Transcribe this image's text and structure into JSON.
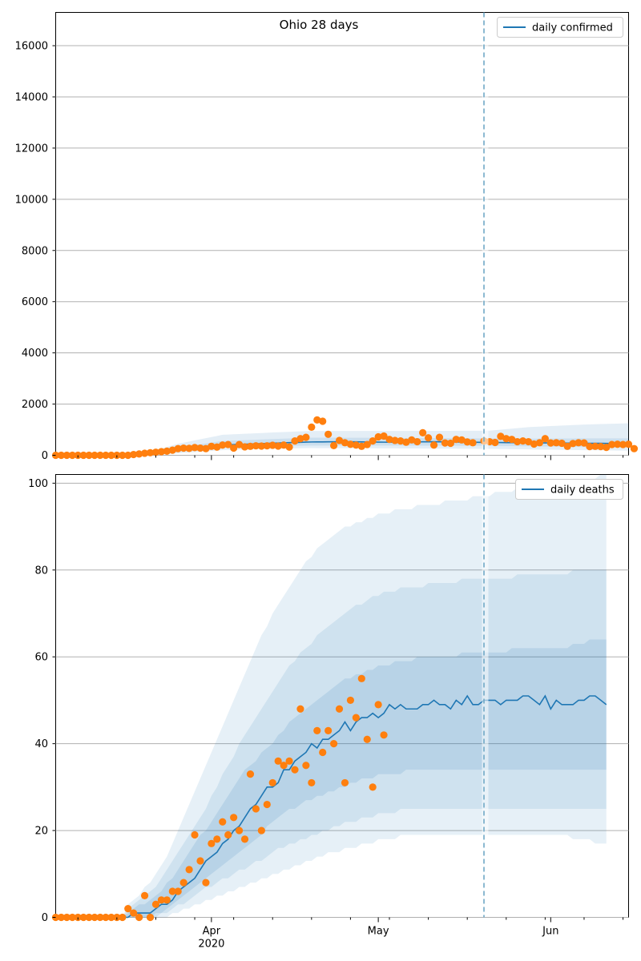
{
  "colors": {
    "line": "#1f77b4",
    "points": "#ff7f0e",
    "band": "#1f77b4",
    "vline": "#6fa8c6",
    "grid": "#b0b0b0"
  },
  "x_axis": {
    "date_range": [
      "2020-03-04",
      "2020-06-15"
    ],
    "forecast_start": "2020-05-20",
    "month_ticks": [
      {
        "date": "2020-04-01",
        "label": "Apr",
        "sublabel": "2020"
      },
      {
        "date": "2020-05-01",
        "label": "May",
        "sublabel": ""
      },
      {
        "date": "2020-06-01",
        "label": "Jun",
        "sublabel": ""
      }
    ],
    "minor_ticks": [
      "2020-03-08",
      "2020-03-15",
      "2020-03-22",
      "2020-03-29",
      "2020-04-05",
      "2020-04-12",
      "2020-04-19",
      "2020-04-26",
      "2020-05-03",
      "2020-05-10",
      "2020-05-17",
      "2020-05-24",
      "2020-05-31",
      "2020-06-07",
      "2020-06-14"
    ]
  },
  "chart_data": [
    {
      "type": "line",
      "title": "Ohio 28 days",
      "legend": "daily confirmed",
      "legend_position": "top-right",
      "grid": "horizontal",
      "ylim": [
        0,
        17300
      ],
      "yticks": [
        0,
        2000,
        4000,
        6000,
        8000,
        10000,
        12000,
        14000,
        16000
      ],
      "start": "2020-03-04",
      "median_knots": [
        [
          0,
          0
        ],
        [
          14,
          0
        ],
        [
          18,
          80
        ],
        [
          22,
          200
        ],
        [
          26,
          300
        ],
        [
          30,
          400
        ],
        [
          40,
          480
        ],
        [
          46,
          520
        ],
        [
          52,
          530
        ],
        [
          60,
          510
        ],
        [
          68,
          530
        ],
        [
          78,
          500
        ],
        [
          85,
          490
        ],
        [
          95,
          470
        ],
        [
          103,
          460
        ]
      ],
      "band_inner_knots": [
        [
          0,
          0,
          0
        ],
        [
          14,
          0,
          0
        ],
        [
          18,
          50,
          120
        ],
        [
          22,
          140,
          300
        ],
        [
          30,
          300,
          560
        ],
        [
          40,
          360,
          640
        ],
        [
          46,
          380,
          690
        ],
        [
          60,
          380,
          680
        ],
        [
          78,
          370,
          660
        ],
        [
          85,
          350,
          650
        ],
        [
          95,
          320,
          660
        ],
        [
          103,
          300,
          660
        ]
      ],
      "band_outer_knots": [
        [
          0,
          0,
          0
        ],
        [
          14,
          0,
          0
        ],
        [
          18,
          20,
          200
        ],
        [
          22,
          80,
          450
        ],
        [
          30,
          200,
          800
        ],
        [
          40,
          260,
          900
        ],
        [
          46,
          280,
          950
        ],
        [
          60,
          270,
          950
        ],
        [
          78,
          250,
          960
        ],
        [
          85,
          230,
          1100
        ],
        [
          95,
          200,
          1200
        ],
        [
          103,
          180,
          1250
        ]
      ],
      "observed": [
        0,
        0,
        0,
        0,
        0,
        0,
        0,
        0,
        0,
        0,
        0,
        0,
        0,
        0,
        30,
        50,
        80,
        100,
        120,
        140,
        160,
        200,
        260,
        280,
        270,
        300,
        280,
        260,
        350,
        320,
        400,
        420,
        280,
        420,
        330,
        350,
        370,
        360,
        370,
        390,
        360,
        400,
        320,
        560,
        650,
        700,
        1100,
        1380,
        1330,
        820,
        380,
        580,
        490,
        430,
        400,
        350,
        420,
        560,
        720,
        750,
        620,
        580,
        560,
        510,
        600,
        530,
        880,
        680,
        400,
        700,
        480,
        470,
        620,
        600,
        520,
        490
      ],
      "observed_late": [
        [
          77,
          560
        ],
        [
          78,
          530
        ],
        [
          79,
          500
        ],
        [
          80,
          740
        ],
        [
          81,
          650
        ],
        [
          82,
          620
        ],
        [
          83,
          530
        ],
        [
          84,
          560
        ],
        [
          85,
          530
        ],
        [
          86,
          440
        ],
        [
          87,
          490
        ],
        [
          88,
          650
        ],
        [
          89,
          480
        ],
        [
          90,
          490
        ],
        [
          91,
          470
        ],
        [
          92,
          350
        ],
        [
          93,
          460
        ],
        [
          94,
          490
        ],
        [
          95,
          480
        ],
        [
          96,
          340
        ],
        [
          97,
          350
        ],
        [
          98,
          340
        ],
        [
          99,
          310
        ],
        [
          100,
          420
        ],
        [
          101,
          430
        ],
        [
          102,
          420
        ],
        [
          103,
          430
        ],
        [
          104,
          260
        ]
      ]
    },
    {
      "type": "line",
      "title": "",
      "legend": "daily deaths",
      "legend_position": "top-right",
      "grid": "horizontal",
      "ylim": [
        0,
        102
      ],
      "yticks": [
        0,
        20,
        40,
        60,
        80,
        100
      ],
      "start": "2020-03-04",
      "median": [
        0,
        0,
        0,
        0,
        0,
        0,
        0,
        0,
        0,
        0,
        0,
        0,
        0,
        0,
        1,
        1,
        1,
        1,
        2,
        3,
        3,
        4,
        6,
        7,
        8,
        9,
        11,
        13,
        14,
        15,
        17,
        18,
        20,
        21,
        23,
        25,
        26,
        28,
        30,
        30,
        31,
        34,
        34,
        36,
        37,
        38,
        40,
        39,
        41,
        41,
        42,
        43,
        45,
        43,
        45,
        46,
        46,
        47,
        46,
        47,
        49,
        48,
        49,
        48,
        48,
        48,
        49,
        49,
        50,
        49,
        49,
        48,
        50,
        49,
        51,
        49,
        49,
        50,
        50,
        50,
        49,
        50,
        50,
        50,
        51,
        51,
        50,
        49,
        51,
        48,
        50,
        49,
        49,
        49,
        50,
        50,
        51,
        51,
        50,
        49
      ],
      "p25": [
        0,
        0,
        0,
        0,
        0,
        0,
        0,
        0,
        0,
        0,
        0,
        0,
        0,
        0,
        0,
        0,
        0,
        0,
        1,
        1,
        2,
        3,
        4,
        5,
        6,
        7,
        8,
        9,
        10,
        11,
        12,
        13,
        14,
        15,
        16,
        17,
        18,
        19,
        21,
        22,
        23,
        24,
        25,
        25,
        26,
        27,
        27,
        28,
        28,
        29,
        29,
        30,
        30,
        31,
        31,
        32,
        32,
        32,
        33,
        33,
        33,
        33,
        33,
        34,
        34,
        34,
        34,
        34,
        34,
        34,
        34,
        34,
        34,
        34,
        34,
        34,
        34,
        34,
        34,
        34,
        34,
        34,
        34,
        34,
        34,
        34,
        34,
        34,
        34,
        34,
        34,
        34,
        34,
        34,
        34,
        34,
        34,
        34,
        34,
        34
      ],
      "p75": [
        0,
        0,
        0,
        0,
        0,
        0,
        0,
        0,
        0,
        0,
        0,
        0,
        0,
        1,
        2,
        3,
        3,
        4,
        5,
        6,
        8,
        9,
        11,
        13,
        15,
        17,
        19,
        20,
        22,
        24,
        26,
        28,
        30,
        32,
        34,
        35,
        36,
        38,
        39,
        40,
        42,
        43,
        45,
        46,
        47,
        48,
        49,
        50,
        51,
        52,
        53,
        54,
        55,
        55,
        56,
        56,
        57,
        57,
        58,
        58,
        58,
        59,
        59,
        59,
        59,
        60,
        60,
        60,
        60,
        60,
        60,
        60,
        60,
        61,
        61,
        61,
        61,
        61,
        61,
        61,
        61,
        61,
        62,
        62,
        62,
        62,
        62,
        62,
        62,
        62,
        62,
        62,
        62,
        63,
        63,
        63,
        64,
        64,
        64,
        64
      ],
      "p10": [
        0,
        0,
        0,
        0,
        0,
        0,
        0,
        0,
        0,
        0,
        0,
        0,
        0,
        0,
        0,
        0,
        0,
        0,
        0,
        1,
        1,
        2,
        3,
        3,
        4,
        5,
        6,
        7,
        7,
        8,
        9,
        9,
        10,
        11,
        11,
        12,
        13,
        13,
        14,
        15,
        16,
        16,
        17,
        17,
        18,
        18,
        19,
        19,
        20,
        20,
        21,
        21,
        22,
        22,
        22,
        23,
        23,
        23,
        24,
        24,
        24,
        24,
        25,
        25,
        25,
        25,
        25,
        25,
        25,
        25,
        25,
        25,
        25,
        25,
        25,
        25,
        25,
        25,
        25,
        25,
        25,
        25,
        25,
        25,
        25,
        25,
        25,
        25,
        25,
        25,
        25,
        25,
        25,
        25,
        25,
        25,
        25,
        25,
        25,
        25
      ],
      "p90": [
        0,
        0,
        0,
        0,
        0,
        0,
        0,
        0,
        0,
        0,
        0,
        0,
        0,
        2,
        3,
        4,
        5,
        6,
        7,
        9,
        11,
        13,
        15,
        17,
        19,
        21,
        23,
        25,
        28,
        30,
        33,
        35,
        37,
        40,
        42,
        44,
        46,
        48,
        50,
        52,
        54,
        56,
        58,
        59,
        61,
        62,
        63,
        65,
        66,
        67,
        68,
        69,
        70,
        71,
        72,
        72,
        73,
        74,
        74,
        75,
        75,
        75,
        76,
        76,
        76,
        76,
        76,
        77,
        77,
        77,
        77,
        77,
        77,
        78,
        78,
        78,
        78,
        78,
        78,
        78,
        78,
        78,
        78,
        79,
        79,
        79,
        79,
        79,
        79,
        79,
        79,
        79,
        79,
        80,
        80,
        80,
        80,
        80,
        80,
        80
      ],
      "p025": [
        0,
        0,
        0,
        0,
        0,
        0,
        0,
        0,
        0,
        0,
        0,
        0,
        0,
        0,
        0,
        0,
        0,
        0,
        0,
        0,
        0,
        1,
        1,
        2,
        2,
        3,
        3,
        4,
        4,
        5,
        5,
        6,
        6,
        7,
        7,
        8,
        8,
        9,
        9,
        10,
        10,
        11,
        11,
        12,
        12,
        13,
        13,
        14,
        14,
        15,
        15,
        15,
        16,
        16,
        16,
        17,
        17,
        17,
        18,
        18,
        18,
        18,
        19,
        19,
        19,
        19,
        19,
        19,
        19,
        19,
        19,
        19,
        19,
        19,
        19,
        19,
        19,
        19,
        19,
        19,
        19,
        19,
        19,
        19,
        19,
        19,
        19,
        19,
        19,
        19,
        19,
        19,
        19,
        18,
        18,
        18,
        18,
        17,
        17,
        17
      ],
      "p975": [
        0,
        0,
        0,
        0,
        0,
        0,
        0,
        0,
        0,
        0,
        0,
        0,
        0,
        3,
        4,
        5,
        7,
        8,
        10,
        12,
        14,
        17,
        20,
        23,
        26,
        29,
        32,
        35,
        38,
        41,
        44,
        47,
        50,
        53,
        56,
        59,
        62,
        65,
        67,
        70,
        72,
        74,
        76,
        78,
        80,
        82,
        83,
        85,
        86,
        87,
        88,
        89,
        90,
        90,
        91,
        91,
        92,
        92,
        93,
        93,
        93,
        94,
        94,
        94,
        94,
        95,
        95,
        95,
        95,
        95,
        96,
        96,
        96,
        96,
        96,
        97,
        97,
        97,
        97,
        98,
        98,
        98,
        98,
        99,
        99,
        99,
        99,
        99,
        100,
        100,
        100,
        100,
        100,
        101,
        101,
        101,
        101,
        101,
        102,
        102
      ],
      "observed": [
        0,
        0,
        0,
        0,
        0,
        0,
        0,
        0,
        0,
        0,
        0,
        0,
        0,
        2,
        1,
        0,
        5,
        0,
        3,
        4,
        4,
        6,
        6,
        8,
        11,
        19,
        13,
        8,
        17,
        18,
        22,
        19,
        23,
        20,
        18,
        33,
        25,
        20,
        26,
        31,
        36,
        35,
        36,
        34,
        48,
        35,
        31,
        43,
        38,
        43,
        40,
        48,
        31,
        50,
        46,
        55,
        41,
        30,
        49,
        42
      ]
    }
  ]
}
